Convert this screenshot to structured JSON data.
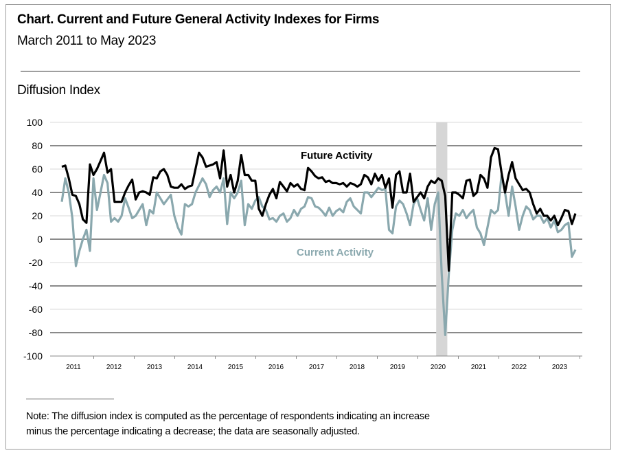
{
  "chart_data": {
    "type": "line",
    "title": "Chart. Current and Future General Activity Indexes for Firms",
    "subtitle": "March 2011 to May 2023",
    "ylabel": "Diffusion Index",
    "xlabel": "",
    "ylim": [
      -100,
      100
    ],
    "yticks": [
      100,
      80,
      60,
      40,
      20,
      0,
      -20,
      -40,
      -60,
      -80,
      -100
    ],
    "ytick_labels": [
      "100",
      "80",
      "60",
      "40",
      "20",
      "0",
      "-20",
      "-40",
      "-60",
      "-80",
      "-100"
    ],
    "xtick_labels": [
      "2011",
      "2012",
      "2013",
      "2014",
      "2015",
      "2016",
      "2017",
      "2018",
      "2019",
      "2020",
      "2021",
      "2022",
      "2023"
    ],
    "x_start": "2011-03",
    "x_end": "2023-05",
    "frequency": "monthly",
    "grid": true,
    "shaded_period": [
      "2020-02",
      "2020-04"
    ],
    "series": [
      {
        "name": "Future Activity",
        "color": "#000000",
        "values": [
          62,
          63,
          52,
          38,
          37,
          30,
          17,
          14,
          64,
          55,
          60,
          67,
          74,
          57,
          60,
          32,
          32,
          32,
          40,
          46,
          51,
          34,
          40,
          41,
          40,
          38,
          53,
          52,
          58,
          60,
          55,
          45,
          44,
          44,
          47,
          43,
          45,
          46,
          60,
          74,
          70,
          62,
          63,
          64,
          66,
          52,
          76,
          45,
          55,
          40,
          50,
          72,
          55,
          55,
          50,
          50,
          26,
          20,
          30,
          38,
          43,
          35,
          49,
          45,
          41,
          48,
          45,
          47,
          43,
          42,
          61,
          58,
          54,
          52,
          53,
          49,
          50,
          48,
          48,
          47,
          48,
          45,
          48,
          47,
          45,
          47,
          55,
          53,
          47,
          56,
          50,
          55,
          44,
          52,
          27,
          55,
          58,
          40,
          40,
          56,
          32,
          36,
          40,
          35,
          45,
          50,
          48,
          52,
          50,
          37,
          -27,
          40,
          40,
          38,
          35,
          50,
          51,
          37,
          40,
          55,
          52,
          44,
          70,
          78,
          77,
          57,
          40,
          55,
          66,
          52,
          47,
          42,
          43,
          40,
          30,
          22,
          26,
          20,
          20,
          16,
          20,
          12,
          18,
          25,
          24,
          13,
          22
        ]
      },
      {
        "name": "Current Activity",
        "color": "#8aa8ae",
        "values": [
          32,
          52,
          40,
          18,
          -23,
          -10,
          0,
          8,
          -10,
          52,
          25,
          40,
          55,
          48,
          15,
          18,
          15,
          20,
          35,
          27,
          18,
          20,
          25,
          30,
          12,
          25,
          22,
          40,
          35,
          30,
          34,
          38,
          20,
          10,
          4,
          30,
          28,
          30,
          40,
          46,
          52,
          47,
          36,
          42,
          45,
          40,
          52,
          13,
          40,
          35,
          40,
          50,
          12,
          30,
          26,
          33,
          36,
          28,
          25,
          17,
          18,
          15,
          20,
          22,
          15,
          18,
          25,
          20,
          26,
          28,
          36,
          35,
          28,
          27,
          24,
          20,
          27,
          20,
          24,
          26,
          23,
          32,
          35,
          28,
          25,
          22,
          40,
          40,
          36,
          40,
          44,
          42,
          43,
          8,
          5,
          28,
          33,
          30,
          22,
          12,
          30,
          35,
          25,
          16,
          35,
          8,
          30,
          40,
          -30,
          -82,
          -30,
          8,
          22,
          20,
          25,
          18,
          22,
          25,
          10,
          5,
          -5,
          10,
          25,
          22,
          25,
          55,
          40,
          20,
          45,
          28,
          8,
          20,
          28,
          25,
          17,
          20,
          20,
          14,
          18,
          10,
          16,
          6,
          8,
          12,
          14,
          -15,
          -9
        ]
      }
    ]
  },
  "note": {
    "line1": "Note:  The diffusion index is computed as the percentage of respondents indicating an increase",
    "line2": "minus the percentage indicating a decrease; the data are seasonally adjusted."
  }
}
